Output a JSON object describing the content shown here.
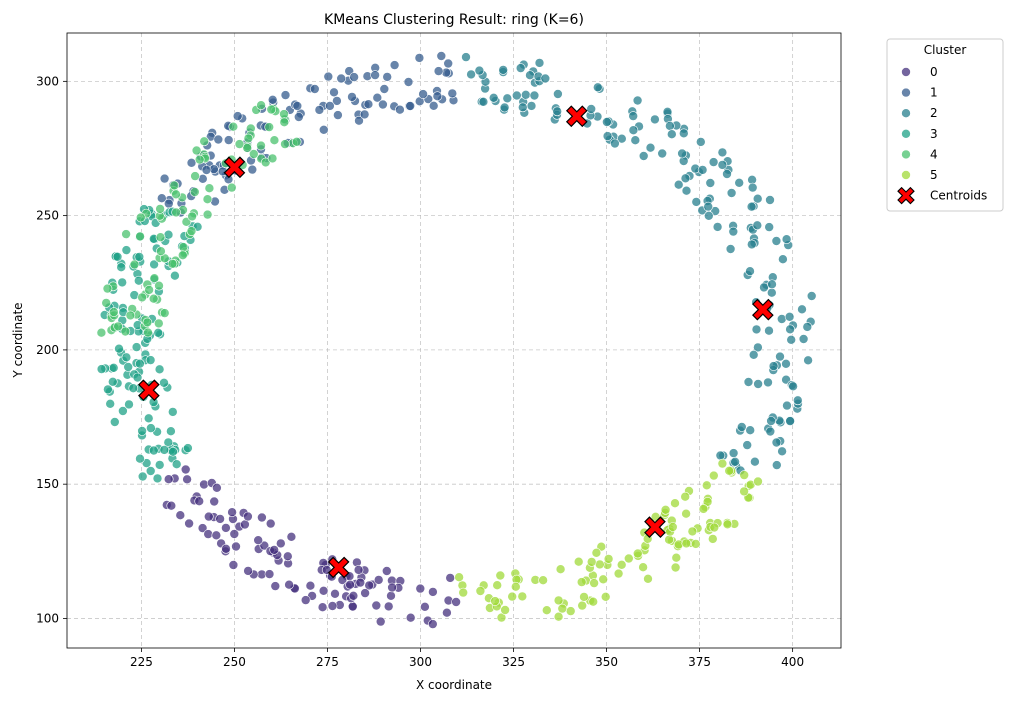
{
  "chart_data": {
    "type": "scatter",
    "title": "KMeans Clustering Result: ring (K=6)",
    "xlabel": "X coordinate",
    "ylabel": "Y coordinate",
    "xlim": [
      205,
      413
    ],
    "ylim": [
      89,
      318
    ],
    "xticks": [
      225,
      250,
      275,
      300,
      325,
      350,
      375,
      400
    ],
    "yticks": [
      100,
      150,
      200,
      250,
      300
    ],
    "grid": true,
    "legend": {
      "title": "Cluster",
      "placement": "outside-top-right",
      "entries": [
        "0",
        "1",
        "2",
        "3",
        "4",
        "5",
        "Centroids"
      ]
    },
    "ring": {
      "center_x": 310,
      "center_y": 203,
      "radius_x": 88,
      "radius_y": 97
    },
    "cluster_colors": [
      "#46327e",
      "#365c8d",
      "#277f8e",
      "#1fa187",
      "#4ac16d",
      "#a0da39"
    ],
    "centroid_color": "#ff0000",
    "series": [
      {
        "name": "0",
        "angle_range_deg": [
          210,
          270
        ],
        "point_count": 110
      },
      {
        "name": "1",
        "angle_range_deg": [
          90,
          150
        ],
        "point_count": 110
      },
      {
        "name": "2",
        "angle_range_deg": [
          -30,
          90
        ],
        "point_count": 180
      },
      {
        "name": "3",
        "angle_range_deg": [
          150,
          210
        ],
        "point_count": 130
      },
      {
        "name": "4",
        "angle_range_deg": [
          120,
          180
        ],
        "point_count": 100
      },
      {
        "name": "5",
        "angle_range_deg": [
          270,
          330
        ],
        "point_count": 110
      }
    ],
    "centroids": [
      {
        "cluster": "0",
        "x": 278,
        "y": 119
      },
      {
        "cluster": "1",
        "x": 342,
        "y": 287
      },
      {
        "cluster": "2",
        "x": 392,
        "y": 215
      },
      {
        "cluster": "3",
        "x": 227,
        "y": 185
      },
      {
        "cluster": "4",
        "x": 250,
        "y": 268
      },
      {
        "cluster": "5",
        "x": 363,
        "y": 134
      }
    ]
  }
}
